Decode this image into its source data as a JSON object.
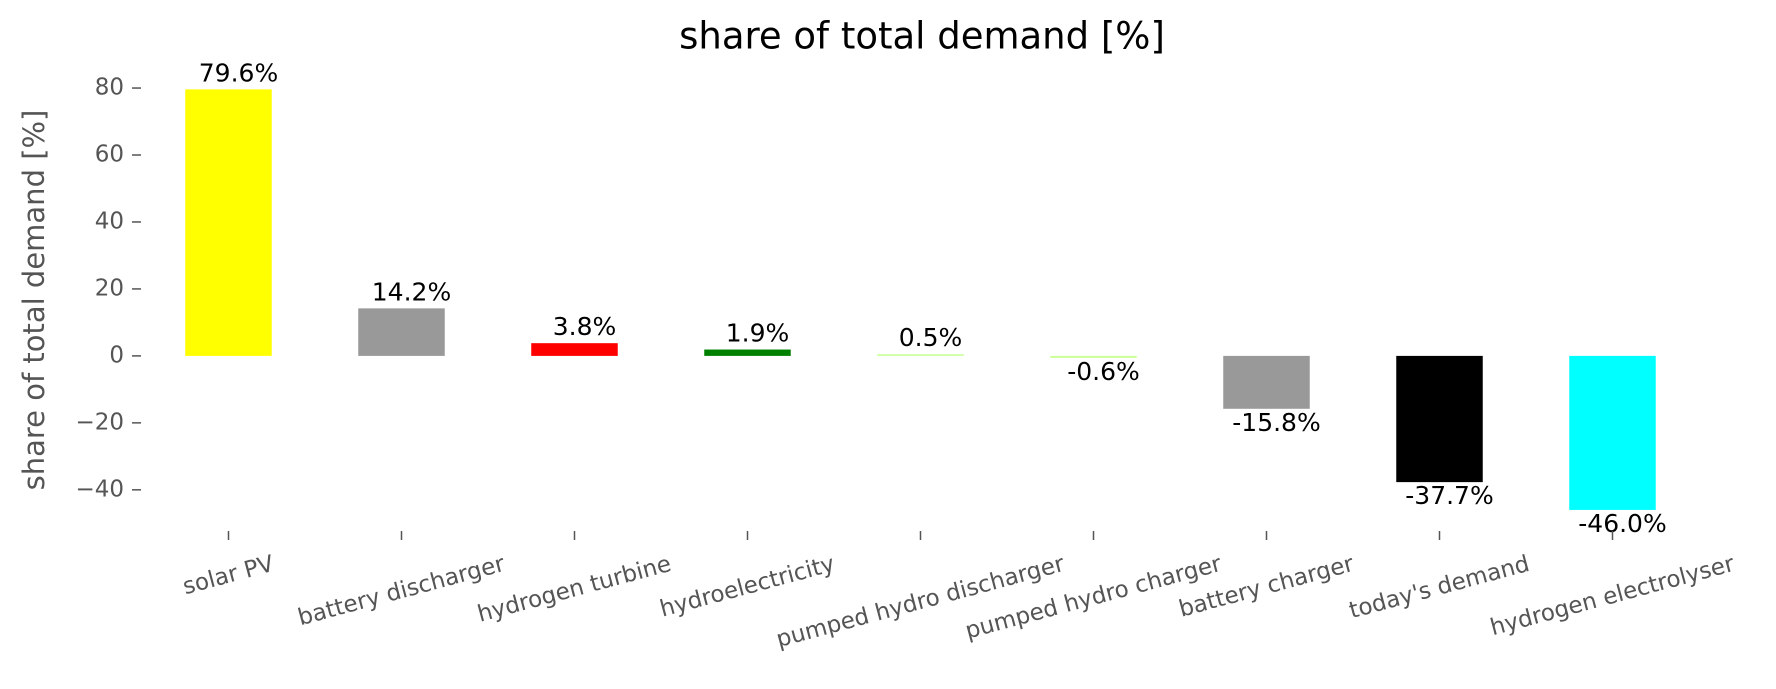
{
  "chart_data": {
    "type": "bar",
    "title": "share of total demand [%]",
    "ylabel": "share of total demand [%]",
    "categories": [
      "solar PV",
      "battery discharger",
      "hydrogen turbine",
      "hydroelectricity",
      "pumped hydro discharger",
      "pumped hydro charger",
      "battery charger",
      "today's demand",
      "hydrogen electrolyser"
    ],
    "values": [
      79.6,
      14.2,
      3.8,
      1.9,
      0.5,
      -0.6,
      -15.8,
      -37.7,
      -46.0
    ],
    "value_labels": [
      "79.6%",
      "14.2%",
      "3.8%",
      "1.9%",
      "0.5%",
      "-0.6%",
      "-15.8%",
      "-37.7%",
      "-46.0%"
    ],
    "colors": [
      "#ffff00",
      "#999999",
      "#ff0000",
      "#008000",
      "#ccff99",
      "#ccff99",
      "#999999",
      "#000000",
      "#00ffff"
    ],
    "ylim": [
      -52,
      83
    ],
    "yticks": [
      {
        "value": -40,
        "label": "−40"
      },
      {
        "value": -20,
        "label": "−20"
      },
      0,
      20,
      40,
      60,
      80
    ],
    "grid": false
  }
}
